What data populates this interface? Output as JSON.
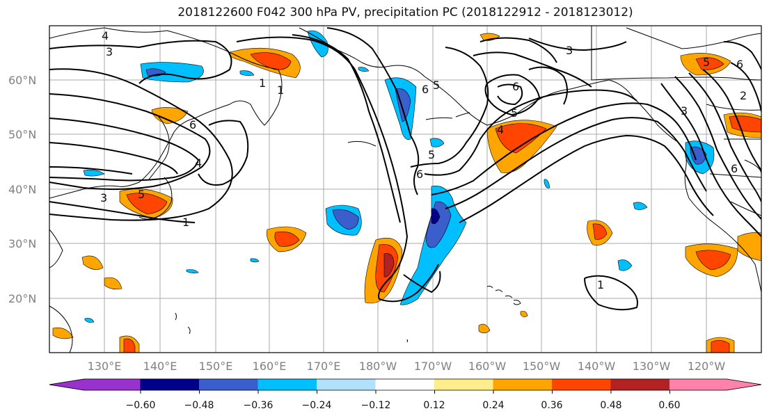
{
  "title": "2018122600 F042 300 hPa PV, precipitation PC (2018122912 - 2018123012)",
  "lat_labels": [
    "60°N",
    "50°N",
    "40°N",
    "30°N",
    "20°N"
  ],
  "lon_labels": [
    "130°E",
    "140°E",
    "150°E",
    "160°E",
    "170°E",
    "180°W",
    "170°W",
    "160°W",
    "150°W",
    "140°W",
    "130°W",
    "120°W"
  ],
  "colorbar": {
    "colors": [
      "#9932cc",
      "#00008b",
      "#3a5fcd",
      "#00bfff",
      "#b0e2ff",
      "#ffffff",
      "#ffec8b",
      "#ffa500",
      "#ff4500",
      "#b22222",
      "#ff82ab"
    ],
    "tick_labels": [
      "−0.60",
      "−0.48",
      "−0.36",
      "−0.24",
      "−0.12",
      "0.12",
      "0.24",
      "0.36",
      "0.48",
      "0.60"
    ]
  },
  "contour_labels": [
    "4",
    "3",
    "1",
    "5",
    "3",
    "1",
    "6",
    "5",
    "6",
    "5",
    "5",
    "6",
    "3",
    "4",
    "6",
    "2",
    "3",
    "6",
    "1",
    "4",
    "5",
    "6",
    "1"
  ]
}
